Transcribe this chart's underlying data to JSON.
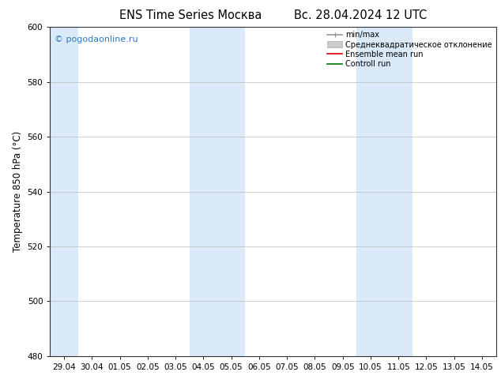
{
  "title_left": "ENS Time Series Москва",
  "title_right": "Вс. 28.04.2024 12 UTC",
  "ylabel": "Temperature 850 hPa (°C)",
  "ylim": [
    480,
    600
  ],
  "yticks": [
    480,
    500,
    520,
    540,
    560,
    580,
    600
  ],
  "x_labels": [
    "29.04",
    "30.04",
    "01.05",
    "02.05",
    "03.05",
    "04.05",
    "05.05",
    "06.05",
    "07.05",
    "08.05",
    "09.05",
    "10.05",
    "11.05",
    "12.05",
    "13.05",
    "14.05"
  ],
  "shaded_band_indices": [
    0,
    5,
    6,
    11,
    12
  ],
  "watermark": "© pogodaonline.ru",
  "watermark_color": "#3377bb",
  "legend_entries": [
    {
      "label": "min/max",
      "color": "#999999",
      "lw": 1.2
    },
    {
      "label": "Среднеквадратическое отклонение",
      "color": "#cccccc",
      "lw": 5
    },
    {
      "label": "Ensemble mean run",
      "color": "#dd0000",
      "lw": 1.2
    },
    {
      "label": "Controll run",
      "color": "#007700",
      "lw": 1.2
    }
  ],
  "background_color": "#ffffff",
  "plot_bg_color": "#ffffff",
  "band_color": "#daeaf8",
  "grid_color": "#bbbbbb",
  "tick_label_fontsize": 7.5,
  "axis_label_fontsize": 8.5,
  "title_fontsize": 10.5
}
